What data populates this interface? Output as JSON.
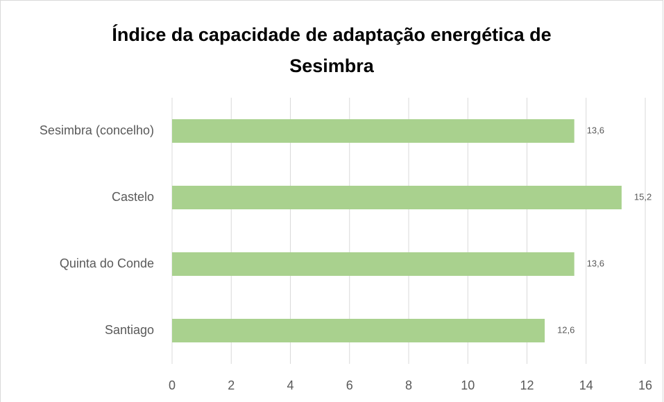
{
  "chart_data": {
    "type": "bar",
    "orientation": "horizontal",
    "title": "Índice da capacidade de adaptação energética de Sesimbra",
    "categories": [
      "Sesimbra (concelho)",
      "Castelo",
      "Quinta do Conde",
      "Santiago"
    ],
    "values": [
      13.6,
      15.2,
      13.6,
      12.6
    ],
    "value_labels": [
      "13,6",
      "15,2",
      "13,6",
      "12,6"
    ],
    "color": "#a9d18e",
    "xlim": [
      0,
      16
    ],
    "xticks": [
      0,
      2,
      4,
      6,
      8,
      10,
      12,
      14,
      16
    ],
    "grid": true
  }
}
